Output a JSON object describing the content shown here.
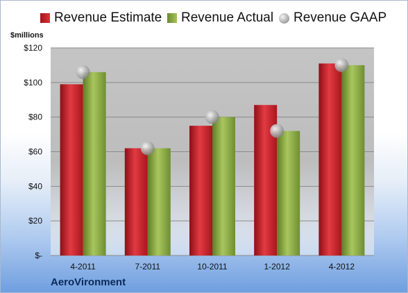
{
  "chart_data": {
    "type": "bar",
    "categories": [
      "4-2011",
      "7-2011",
      "10-2011",
      "1-2012",
      "4-2012"
    ],
    "series": [
      {
        "name": "Revenue Estimate",
        "values": [
          99,
          62,
          75,
          87,
          111
        ],
        "color": "#c8202a"
      },
      {
        "name": "Revenue Actual",
        "values": [
          106,
          62,
          80,
          72,
          110
        ],
        "color": "#8fae44"
      },
      {
        "name": "Revenue GAAP",
        "values": [
          106,
          62,
          80,
          72,
          110
        ],
        "color": "#b0b0b0",
        "marker": "circle"
      }
    ],
    "ylabel": "$millions",
    "ylim": [
      0,
      120
    ],
    "yticks": [
      "$-",
      "$20",
      "$40",
      "$60",
      "$80",
      "$100",
      "$120"
    ],
    "yticks_values": [
      0,
      20,
      40,
      60,
      80,
      100,
      120
    ],
    "grid": true,
    "legend": "top"
  },
  "footer": {
    "company": "AeroVironment"
  }
}
